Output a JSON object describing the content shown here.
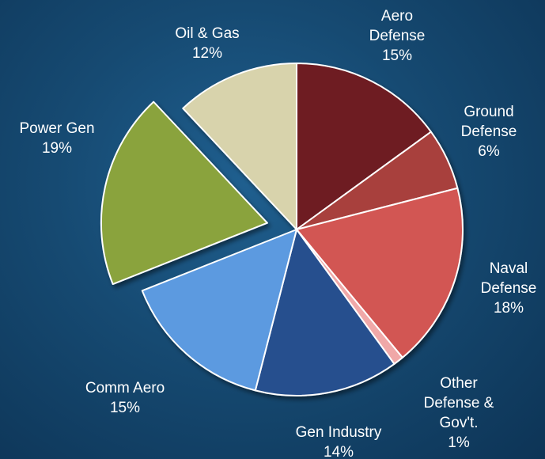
{
  "chart_data": {
    "type": "pie",
    "title": "",
    "slices": [
      {
        "name": "Aero Defense",
        "label_lines": [
          "Aero",
          "Defense"
        ],
        "value": 15,
        "pct_label": "15%",
        "color": "#6e1f24",
        "exploded": false
      },
      {
        "name": "Ground Defense",
        "label_lines": [
          "Ground",
          "Defense"
        ],
        "value": 6,
        "pct_label": "6%",
        "color": "#a8403d",
        "exploded": false
      },
      {
        "name": "Naval Defense",
        "label_lines": [
          "Naval",
          "Defense"
        ],
        "value": 18,
        "pct_label": "18%",
        "color": "#d25652",
        "exploded": false
      },
      {
        "name": "Other Defense & Gov't.",
        "label_lines": [
          "Other",
          "Defense &",
          "Gov't."
        ],
        "value": 1,
        "pct_label": "1%",
        "color": "#f0a8a8",
        "exploded": false
      },
      {
        "name": "Gen Industry",
        "label_lines": [
          "Gen Industry"
        ],
        "value": 14,
        "pct_label": "14%",
        "color": "#27508e",
        "exploded": false
      },
      {
        "name": "Comm Aero",
        "label_lines": [
          "Comm Aero"
        ],
        "value": 15,
        "pct_label": "15%",
        "color": "#5b9ae0",
        "exploded": false
      },
      {
        "name": "Power Gen",
        "label_lines": [
          "Power Gen"
        ],
        "value": 19,
        "pct_label": "19%",
        "color": "#8aa33c",
        "exploded": true
      },
      {
        "name": "Oil & Gas",
        "label_lines": [
          "Oil & Gas"
        ],
        "value": 12,
        "pct_label": "12%",
        "color": "#d8d3ac",
        "exploded": false
      }
    ]
  }
}
